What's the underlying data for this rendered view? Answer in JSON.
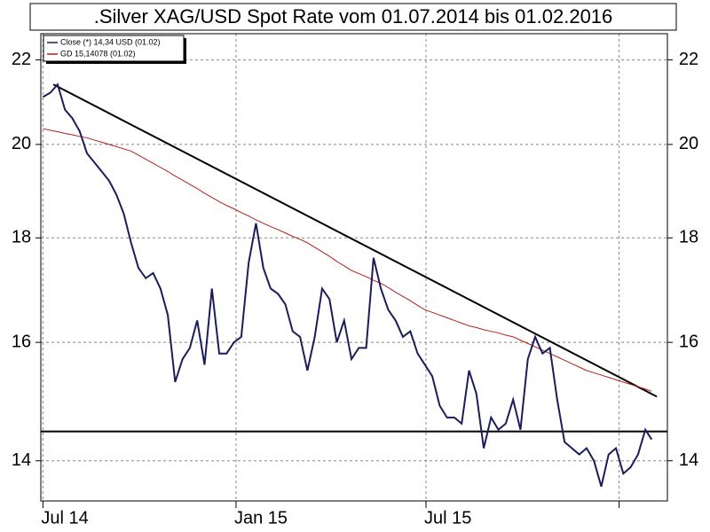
{
  "chart_data": {
    "type": "line",
    "title": ".Silver XAG/USD Spot Rate vom 01.07.2014 bis 01.02.2016",
    "x": [
      "2014-07-01",
      "2014-07-08",
      "2014-07-15",
      "2014-07-22",
      "2014-07-29",
      "2014-08-05",
      "2014-08-12",
      "2014-08-19",
      "2014-08-26",
      "2014-09-02",
      "2014-09-09",
      "2014-09-16",
      "2014-09-23",
      "2014-09-30",
      "2014-10-07",
      "2014-10-14",
      "2014-10-21",
      "2014-10-28",
      "2014-11-04",
      "2014-11-11",
      "2014-11-18",
      "2014-11-25",
      "2014-12-02",
      "2014-12-09",
      "2014-12-16",
      "2014-12-23",
      "2014-12-30",
      "2015-01-06",
      "2015-01-13",
      "2015-01-20",
      "2015-01-27",
      "2015-02-03",
      "2015-02-10",
      "2015-02-17",
      "2015-02-24",
      "2015-03-03",
      "2015-03-10",
      "2015-03-17",
      "2015-03-24",
      "2015-03-31",
      "2015-04-07",
      "2015-04-14",
      "2015-04-21",
      "2015-04-28",
      "2015-05-05",
      "2015-05-12",
      "2015-05-19",
      "2015-05-26",
      "2015-06-02",
      "2015-06-09",
      "2015-06-16",
      "2015-06-23",
      "2015-06-30",
      "2015-07-07",
      "2015-07-14",
      "2015-07-21",
      "2015-07-28",
      "2015-08-04",
      "2015-08-11",
      "2015-08-18",
      "2015-08-25",
      "2015-09-01",
      "2015-09-08",
      "2015-09-15",
      "2015-09-22",
      "2015-09-29",
      "2015-10-06",
      "2015-10-13",
      "2015-10-20",
      "2015-10-27",
      "2015-11-03",
      "2015-11-10",
      "2015-11-17",
      "2015-11-24",
      "2015-12-01",
      "2015-12-08",
      "2015-12-15",
      "2015-12-22",
      "2015-12-29",
      "2016-01-05",
      "2016-01-12",
      "2016-01-19",
      "2016-01-26",
      "2016-02-01"
    ],
    "series": [
      {
        "name": "Close (*) 14,34 USD (01.02)",
        "color": "#1c1c5c",
        "values": [
          21.1,
          21.2,
          21.4,
          20.8,
          20.6,
          20.3,
          19.8,
          19.6,
          19.4,
          19.2,
          18.9,
          18.5,
          17.9,
          17.4,
          17.2,
          17.3,
          17.0,
          16.5,
          15.3,
          15.7,
          15.9,
          16.4,
          15.6,
          17.0,
          15.8,
          15.8,
          16.0,
          16.1,
          17.5,
          18.3,
          17.4,
          17.0,
          16.9,
          16.7,
          16.2,
          16.1,
          15.5,
          16.1,
          17.0,
          16.8,
          16.0,
          16.4,
          15.7,
          15.9,
          15.9,
          17.6,
          17.0,
          16.6,
          16.4,
          16.1,
          16.2,
          15.8,
          15.6,
          15.4,
          14.9,
          14.7,
          14.7,
          14.6,
          15.5,
          15.1,
          14.2,
          14.7,
          14.5,
          14.6,
          15.0,
          14.5,
          15.7,
          16.1,
          15.8,
          15.9,
          15.0,
          14.3,
          14.2,
          14.1,
          14.2,
          14.0,
          13.6,
          14.1,
          14.2,
          13.8,
          13.9,
          14.1,
          14.5,
          14.34
        ]
      },
      {
        "name": "GD 15,14078 (01.02)",
        "color": "#b0201a",
        "values": [
          20.36,
          20.32,
          20.29,
          20.25,
          20.22,
          20.18,
          20.15,
          20.1,
          20.05,
          20.0,
          19.95,
          19.9,
          19.85,
          19.76,
          19.67,
          19.58,
          19.49,
          19.4,
          19.3,
          19.21,
          19.12,
          19.03,
          18.93,
          18.84,
          18.75,
          18.67,
          18.6,
          18.52,
          18.45,
          18.37,
          18.3,
          18.23,
          18.17,
          18.1,
          18.03,
          17.97,
          17.9,
          17.81,
          17.72,
          17.63,
          17.53,
          17.44,
          17.35,
          17.29,
          17.23,
          17.16,
          17.1,
          17.02,
          16.93,
          16.85,
          16.77,
          16.68,
          16.6,
          16.55,
          16.5,
          16.45,
          16.4,
          16.35,
          16.3,
          16.27,
          16.23,
          16.2,
          16.17,
          16.13,
          16.1,
          16.04,
          15.98,
          15.92,
          15.86,
          15.8,
          15.74,
          15.68,
          15.62,
          15.56,
          15.5,
          15.46,
          15.42,
          15.38,
          15.34,
          15.3,
          15.26,
          15.22,
          15.18,
          15.14078
        ]
      }
    ],
    "trend_lines": [
      {
        "color": "#000000",
        "x": [
          "2014-07-11",
          "2016-02-06"
        ],
        "values": [
          21.4,
          15.05
        ]
      },
      {
        "color": "#000000",
        "x": [
          "2014-06-29",
          "2016-02-16"
        ],
        "values": [
          14.47,
          14.47
        ]
      }
    ],
    "xlim": [
      "2014-06-29",
      "2016-02-16"
    ],
    "xticks": [
      {
        "value": "2014-07-01",
        "label": "Jul 14"
      },
      {
        "value": "2015-01-01",
        "label": "Jan 15"
      },
      {
        "value": "2015-07-01",
        "label": "Jul 15"
      },
      {
        "value": "2016-01-01",
        "label": null
      }
    ],
    "ylim": [
      13.38,
      22.66
    ],
    "yticks": [
      14,
      16,
      18,
      20,
      22
    ],
    "log_scale": true,
    "grid": true,
    "legend": "top-left"
  }
}
